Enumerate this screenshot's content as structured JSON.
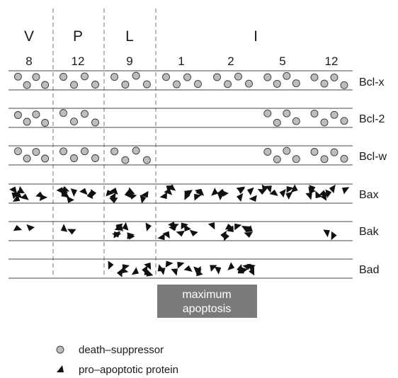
{
  "stages": [
    "V",
    "P",
    "L",
    "I"
  ],
  "days": [
    "8",
    "12",
    "9",
    "1",
    "2",
    "5",
    "12"
  ],
  "rows": [
    {
      "name": "Bcl-x",
      "type": "circle",
      "groups": [
        1,
        1,
        1,
        1,
        1,
        1,
        1
      ]
    },
    {
      "name": "Bcl-2",
      "type": "circle",
      "groups": [
        1,
        1,
        0,
        0,
        0,
        1,
        1
      ]
    },
    {
      "name": "Bcl-w",
      "type": "circle",
      "groups": [
        1,
        1,
        1,
        0,
        0,
        1,
        1
      ]
    },
    {
      "name": "Bax",
      "type": "triangle",
      "groups": [
        1,
        1,
        1,
        1,
        1,
        1,
        1
      ]
    },
    {
      "name": "Bak",
      "type": "triangle",
      "groups": [
        1,
        1,
        1,
        1,
        1,
        0,
        1
      ]
    },
    {
      "name": "Bad",
      "type": "triangle",
      "groups": [
        0,
        0,
        1,
        1,
        1,
        0,
        0
      ]
    }
  ],
  "annotation": {
    "line1": "maximum",
    "line2": "apoptosis"
  },
  "legend": {
    "circle_label": "death–suppressor",
    "triangle_label": "pro–apoptotic protein"
  },
  "colors": {
    "circle_fill": "#bdbdbd",
    "marker": "#111111",
    "box": "#7a7a7a",
    "line": "#444444",
    "divider": "#777777"
  }
}
